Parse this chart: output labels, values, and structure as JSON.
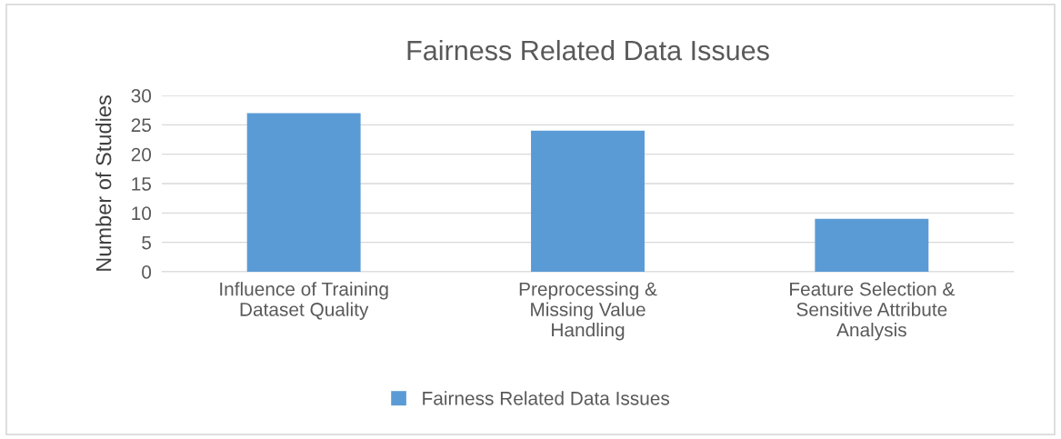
{
  "chart_data": {
    "type": "bar",
    "title": "Fairness Related Data Issues",
    "ylabel": "Number of Studies",
    "categories": [
      "Influence of Training\nDataset Quality",
      "Preprocessing &\nMissing Value\nHandling",
      "Feature Selection &\nSensitive Attribute\nAnalysis"
    ],
    "series": [
      {
        "name": "Fairness Related Data Issues",
        "color": "#5b9bd5",
        "values": [
          27,
          24,
          9
        ]
      }
    ],
    "ylim": [
      0,
      30
    ],
    "yticks": [
      0,
      5,
      10,
      15,
      20,
      25,
      30
    ],
    "grid": "y",
    "legend": "bottom"
  }
}
